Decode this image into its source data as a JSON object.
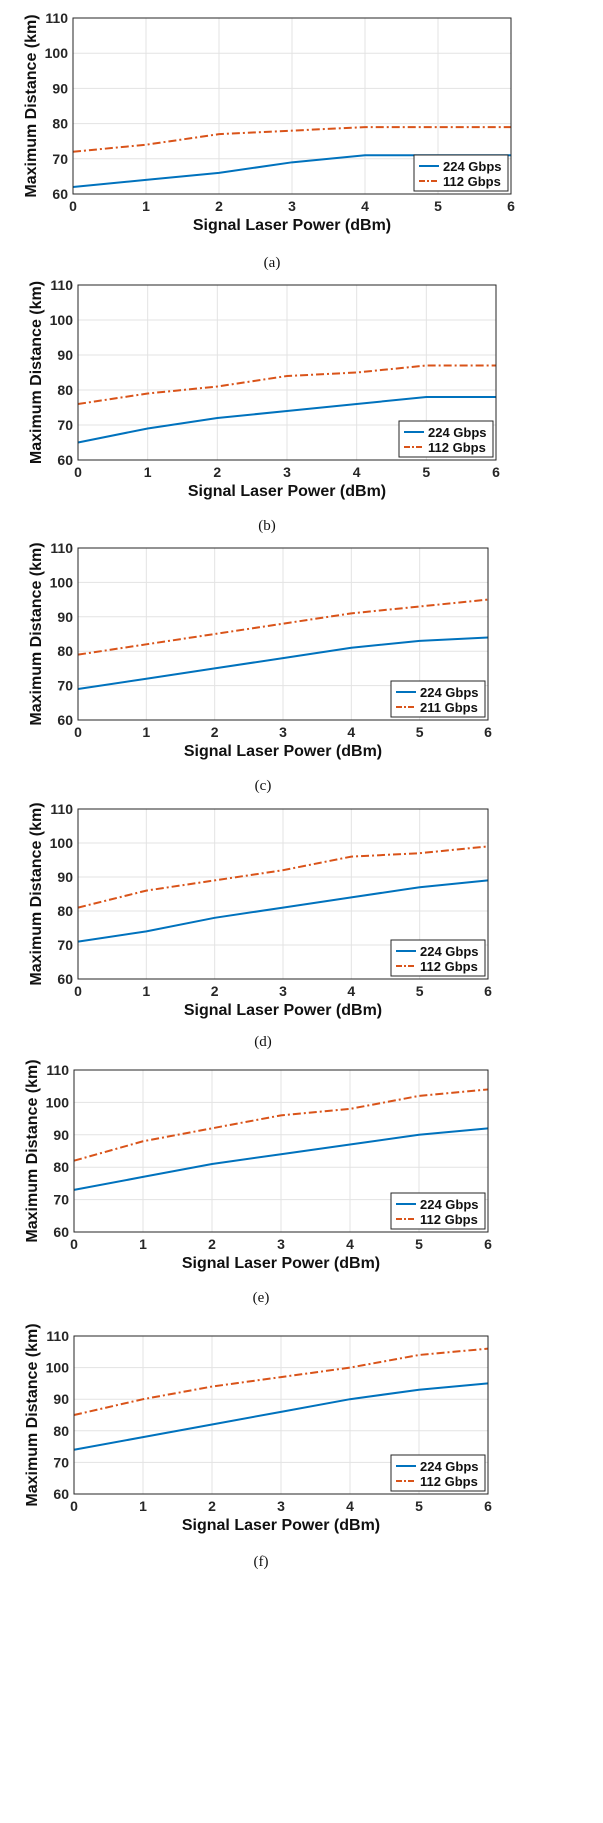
{
  "chart_data": [
    {
      "type": "line",
      "caption": "(a)",
      "xlabel": "Signal Laser Power (dBm)",
      "ylabel": "Maximum Distance (km)",
      "xlim": [
        0,
        6
      ],
      "ylim": [
        60,
        110
      ],
      "xticks": [
        "0",
        "1",
        "2",
        "3",
        "4",
        "5",
        "6"
      ],
      "yticks": [
        "60",
        "70",
        "80",
        "90",
        "100",
        "110"
      ],
      "grid": true,
      "legend_position": "bottom-right",
      "x": [
        0,
        1,
        2,
        3,
        4,
        5,
        6
      ],
      "series": [
        {
          "name": "224 Gbps",
          "style": "solid",
          "color": "#0072BD",
          "values": [
            62,
            64,
            66,
            69,
            71,
            71,
            71
          ]
        },
        {
          "name": "112 Gbps",
          "style": "dashdot",
          "color": "#D95319",
          "values": [
            72,
            74,
            77,
            78,
            79,
            79,
            79
          ]
        }
      ]
    },
    {
      "type": "line",
      "caption": "(b)",
      "xlabel": "Signal Laser Power (dBm)",
      "ylabel": "Maximum Distance (km)",
      "xlim": [
        0,
        6
      ],
      "ylim": [
        60,
        110
      ],
      "xticks": [
        "0",
        "1",
        "2",
        "3",
        "4",
        "5",
        "6"
      ],
      "yticks": [
        "60",
        "70",
        "80",
        "90",
        "100",
        "110"
      ],
      "grid": true,
      "legend_position": "bottom-right",
      "x": [
        0,
        1,
        2,
        3,
        4,
        5,
        6
      ],
      "series": [
        {
          "name": "224 Gbps",
          "style": "solid",
          "color": "#0072BD",
          "values": [
            65,
            69,
            72,
            74,
            76,
            78,
            78
          ]
        },
        {
          "name": "112 Gbps",
          "style": "dashdot",
          "color": "#D95319",
          "values": [
            76,
            79,
            81,
            84,
            85,
            87,
            87
          ]
        }
      ]
    },
    {
      "type": "line",
      "caption": "(c)",
      "xlabel": "Signal Laser Power (dBm)",
      "ylabel": "Maximum Distance (km)",
      "xlim": [
        0,
        6
      ],
      "ylim": [
        60,
        110
      ],
      "xticks": [
        "0",
        "1",
        "2",
        "3",
        "4",
        "5",
        "6"
      ],
      "yticks": [
        "60",
        "70",
        "80",
        "90",
        "100",
        "110"
      ],
      "grid": true,
      "legend_position": "bottom-right",
      "x": [
        0,
        1,
        2,
        3,
        4,
        5,
        6
      ],
      "series": [
        {
          "name": "224 Gbps",
          "style": "solid",
          "color": "#0072BD",
          "values": [
            69,
            72,
            75,
            78,
            81,
            83,
            84
          ]
        },
        {
          "name": "211 Gbps",
          "style": "dashdot",
          "color": "#D95319",
          "values": [
            79,
            82,
            85,
            88,
            91,
            93,
            95
          ]
        }
      ]
    },
    {
      "type": "line",
      "caption": "(d)",
      "xlabel": "Signal Laser Power (dBm)",
      "ylabel": "Maximum Distance (km)",
      "xlim": [
        0,
        6
      ],
      "ylim": [
        60,
        110
      ],
      "xticks": [
        "0",
        "1",
        "2",
        "3",
        "4",
        "5",
        "6"
      ],
      "yticks": [
        "60",
        "70",
        "80",
        "90",
        "100",
        "110"
      ],
      "grid": true,
      "legend_position": "bottom-right",
      "x": [
        0,
        1,
        2,
        3,
        4,
        5,
        6
      ],
      "series": [
        {
          "name": "224 Gbps",
          "style": "solid",
          "color": "#0072BD",
          "values": [
            71,
            74,
            78,
            81,
            84,
            87,
            89
          ]
        },
        {
          "name": "112 Gbps",
          "style": "dashdot",
          "color": "#D95319",
          "values": [
            81,
            86,
            89,
            92,
            96,
            97,
            99
          ]
        }
      ]
    },
    {
      "type": "line",
      "caption": "(e)",
      "xlabel": "Signal Laser Power (dBm)",
      "ylabel": "Maximum Distance (km)",
      "xlim": [
        0,
        6
      ],
      "ylim": [
        60,
        110
      ],
      "xticks": [
        "0",
        "1",
        "2",
        "3",
        "4",
        "5",
        "6"
      ],
      "yticks": [
        "60",
        "70",
        "80",
        "90",
        "100",
        "110"
      ],
      "grid": true,
      "legend_position": "bottom-right",
      "x": [
        0,
        1,
        2,
        3,
        4,
        5,
        6
      ],
      "series": [
        {
          "name": "224 Gbps",
          "style": "solid",
          "color": "#0072BD",
          "values": [
            73,
            77,
            81,
            84,
            87,
            90,
            92
          ]
        },
        {
          "name": "112 Gbps",
          "style": "dashdot",
          "color": "#D95319",
          "values": [
            82,
            88,
            92,
            96,
            98,
            102,
            104
          ]
        }
      ]
    },
    {
      "type": "line",
      "caption": "(f)",
      "xlabel": "Signal Laser Power (dBm)",
      "ylabel": "Maximum Distance (km)",
      "xlim": [
        0,
        6
      ],
      "ylim": [
        60,
        110
      ],
      "xticks": [
        "0",
        "1",
        "2",
        "3",
        "4",
        "5",
        "6"
      ],
      "yticks": [
        "60",
        "70",
        "80",
        "90",
        "100",
        "110"
      ],
      "grid": true,
      "legend_position": "bottom-right",
      "x": [
        0,
        1,
        2,
        3,
        4,
        5,
        6
      ],
      "series": [
        {
          "name": "224 Gbps",
          "style": "solid",
          "color": "#0072BD",
          "values": [
            74,
            78,
            82,
            86,
            90,
            93,
            95
          ]
        },
        {
          "name": "112 Gbps",
          "style": "dashdot",
          "color": "#D95319",
          "values": [
            85,
            90,
            94,
            97,
            100,
            104,
            106
          ]
        }
      ]
    }
  ]
}
